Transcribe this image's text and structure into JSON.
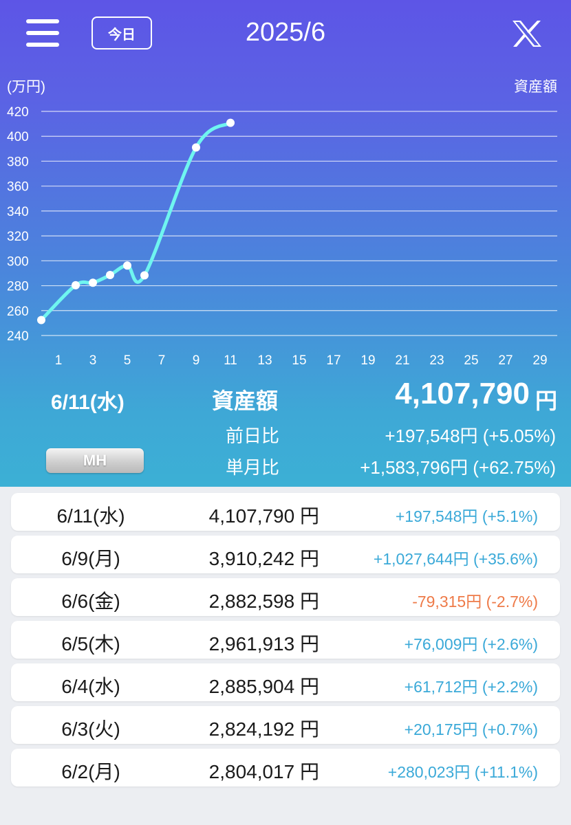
{
  "header": {
    "today_label": "今日",
    "month_title": "2025/6",
    "menu_icon": "hamburger-menu-icon",
    "share_icon": "x-logo-icon"
  },
  "chart_data": {
    "type": "line",
    "ylabel": "(万円)",
    "series_label": "資産額",
    "ylim": [
      240,
      420
    ],
    "yticks": [
      "240",
      "260",
      "280",
      "300",
      "320",
      "340",
      "360",
      "380",
      "400",
      "420"
    ],
    "xlim": [
      0,
      30
    ],
    "xticks": [
      "1",
      "3",
      "5",
      "7",
      "9",
      "11",
      "13",
      "15",
      "17",
      "19",
      "21",
      "23",
      "25",
      "27",
      "29"
    ],
    "grid": true,
    "line_color": "#6ff5f0",
    "series": [
      {
        "x": [
          0,
          2,
          3,
          4,
          5,
          6,
          9,
          11
        ],
        "y": [
          252.4,
          280.4,
          282.4,
          288.6,
          296.2,
          288.3,
          391.0,
          410.8
        ]
      }
    ]
  },
  "summary": {
    "date": "6/11(水)",
    "label": "資産額",
    "value": "4,107,790",
    "yen": "円",
    "prev_day_label": "前日比",
    "prev_day_value": "+197,548円 (+5.05%)",
    "month_label": "単月比",
    "month_value": "+1,583,796円 (+62.75%)",
    "mh_label": "MH"
  },
  "history": [
    {
      "date": "6/11(水)",
      "amount": "4,107,790 円",
      "change": "+197,548円 (+5.1%)",
      "status": "up"
    },
    {
      "date": "6/9(月)",
      "amount": "3,910,242 円",
      "change": "+1,027,644円 (+35.6%)",
      "status": "up"
    },
    {
      "date": "6/6(金)",
      "amount": "2,882,598 円",
      "change": "-79,315円 (-2.7%)",
      "status": "down"
    },
    {
      "date": "6/5(木)",
      "amount": "2,961,913 円",
      "change": "+76,009円 (+2.6%)",
      "status": "up"
    },
    {
      "date": "6/4(水)",
      "amount": "2,885,904 円",
      "change": "+61,712円 (+2.2%)",
      "status": "up"
    },
    {
      "date": "6/3(火)",
      "amount": "2,824,192 円",
      "change": "+20,175円 (+0.7%)",
      "status": "up"
    },
    {
      "date": "6/2(月)",
      "amount": "2,804,017 円",
      "change": "+280,023円 (+11.1%)",
      "status": "up"
    }
  ],
  "colors": {
    "up": "#3aa9d8",
    "down": "#ee7a48"
  }
}
